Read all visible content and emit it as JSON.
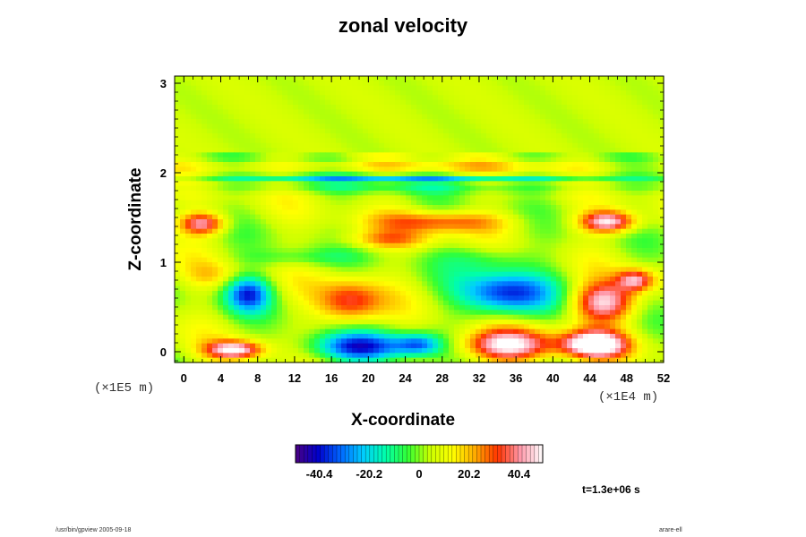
{
  "chart_data": {
    "type": "heatmap",
    "title": "zonal velocity",
    "xlabel": "X-coordinate",
    "ylabel": "Z-coordinate",
    "x_unit": "(×1E4 m)",
    "y_unit": "(×1E5 m)",
    "xlim": [
      -1,
      52
    ],
    "ylim": [
      -0.12,
      3.08
    ],
    "x_ticks": [
      "0",
      "4",
      "8",
      "12",
      "16",
      "20",
      "24",
      "28",
      "32",
      "36",
      "40",
      "44",
      "48",
      "52"
    ],
    "x_tick_values": [
      0,
      4,
      8,
      12,
      16,
      20,
      24,
      28,
      32,
      36,
      40,
      44,
      48,
      52
    ],
    "y_ticks": [
      "0",
      "1",
      "2",
      "3"
    ],
    "y_tick_values": [
      0,
      1,
      2,
      3
    ],
    "colorbar": {
      "min": -50,
      "max": 50,
      "tick_labels": [
        "-40.4",
        "-20.2",
        "0",
        "20.2",
        "40.4"
      ],
      "tick_values": [
        -40.4,
        -20.2,
        0,
        20.2,
        40.4
      ],
      "colors": [
        "#4b0082",
        "#0000cc",
        "#0066ff",
        "#00ccff",
        "#00ffaa",
        "#33ff33",
        "#ccff00",
        "#ffff00",
        "#ffaa00",
        "#ff3300",
        "#ff99aa",
        "#ffffff"
      ]
    },
    "background_value": 5,
    "features": [
      {
        "x": 44.5,
        "z": 0.08,
        "value": 55,
        "rx": 3.5,
        "rz": 0.15
      },
      {
        "x": 35.0,
        "z": 0.07,
        "value": 45,
        "rx": 5.0,
        "rz": 0.18
      },
      {
        "x": 5.5,
        "z": 0.02,
        "value": 45,
        "rx": 3.0,
        "rz": 0.1
      },
      {
        "x": 19.0,
        "z": 0.05,
        "value": -42,
        "rx": 5.5,
        "rz": 0.17
      },
      {
        "x": 25.5,
        "z": 0.08,
        "value": -28,
        "rx": 2.5,
        "rz": 0.12
      },
      {
        "x": 7.0,
        "z": 0.65,
        "value": -38,
        "rx": 2.5,
        "rz": 0.2
      },
      {
        "x": 35.0,
        "z": 0.65,
        "value": -42,
        "rx": 5.0,
        "rz": 0.25
      },
      {
        "x": 18.0,
        "z": 0.55,
        "value": 30,
        "rx": 3.5,
        "rz": 0.25
      },
      {
        "x": 45.5,
        "z": 0.55,
        "value": 42,
        "rx": 3.5,
        "rz": 0.22
      },
      {
        "x": 49.0,
        "z": 0.8,
        "value": 35,
        "rx": 2.0,
        "rz": 0.12
      },
      {
        "x": 2.0,
        "z": 1.43,
        "value": 38,
        "rx": 2.5,
        "rz": 0.12
      },
      {
        "x": 46.0,
        "z": 1.45,
        "value": 45,
        "rx": 3.0,
        "rz": 0.12
      },
      {
        "x": 28.0,
        "z": 1.45,
        "value": 25,
        "rx": 7.0,
        "rz": 0.12
      },
      {
        "x": 22.0,
        "z": 1.25,
        "value": 18,
        "rx": 5.0,
        "rz": 0.1
      },
      {
        "x": 12.0,
        "z": 1.05,
        "value": -10,
        "rx": 6.0,
        "rz": 0.1
      },
      {
        "x": 25.0,
        "z": 1.93,
        "value": -28,
        "rx": 24.0,
        "rz": 0.04
      },
      {
        "x": 26.0,
        "z": 1.82,
        "value": -10,
        "rx": 26.0,
        "rz": 0.05
      },
      {
        "x": 24.0,
        "z": 2.07,
        "value": 12,
        "rx": 26.0,
        "rz": 0.05
      },
      {
        "x": 33.0,
        "z": 1.05,
        "value": -12,
        "rx": 5.0,
        "rz": 0.15
      },
      {
        "x": 3.0,
        "z": 0.85,
        "value": 10,
        "rx": 3.0,
        "rz": 0.15
      }
    ]
  },
  "footer": {
    "time_stamp": "t=1.3e+06 s",
    "left_note": "/usr/bin/gpview 2005-09-18",
    "right_note": "arare-ell"
  }
}
